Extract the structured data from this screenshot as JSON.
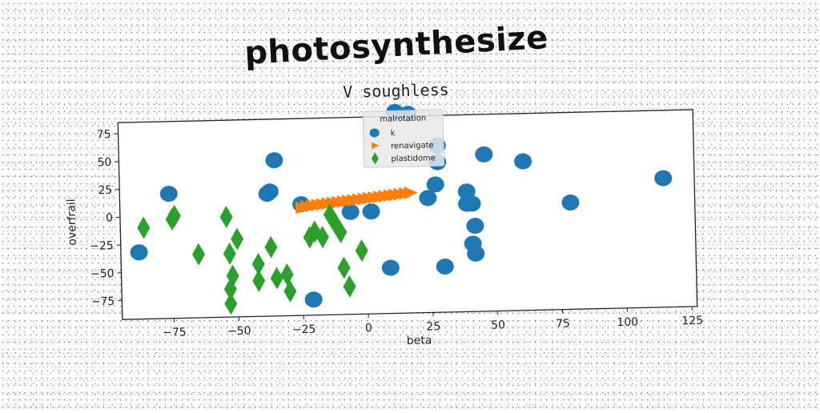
{
  "page_title": "photosynthesize",
  "chart_data": {
    "type": "scatter",
    "subtitle": "V soughless",
    "xlabel": "beta",
    "ylabel": "overfrail",
    "xlim": [
      -95,
      127
    ],
    "ylim": [
      -92,
      85
    ],
    "xticks": [
      -75,
      -50,
      -25,
      0,
      25,
      50,
      75,
      100,
      125
    ],
    "yticks": [
      -75,
      -50,
      -25,
      0,
      25,
      50,
      75
    ],
    "xtick_labels": [
      "−75",
      "−50",
      "−25",
      "0",
      "25",
      "50",
      "75",
      "100",
      "125"
    ],
    "ytick_labels": [
      "−75",
      "−50",
      "−25",
      "0",
      "25",
      "50",
      "75"
    ],
    "grid": false,
    "legend": {
      "title": "malrotation",
      "placement": "top-center",
      "entries": [
        "k",
        "renavigate",
        "plastidome"
      ]
    },
    "series": [
      {
        "name": "k",
        "marker": "circle",
        "color": "#1f77b4",
        "points": [
          [
            -88,
            -32
          ],
          [
            -76,
            20
          ],
          [
            -38,
            18
          ],
          [
            -37,
            20
          ],
          [
            -35,
            48
          ],
          [
            -25,
            8
          ],
          [
            -21,
            -78
          ],
          [
            -6,
            0
          ],
          [
            2,
            0
          ],
          [
            9,
            -51
          ],
          [
            12,
            89
          ],
          [
            17,
            87
          ],
          [
            24,
            11
          ],
          [
            27,
            23
          ],
          [
            28,
            43
          ],
          [
            28,
            58
          ],
          [
            30,
            -51
          ],
          [
            39,
            16
          ],
          [
            39,
            5
          ],
          [
            41,
            5
          ],
          [
            42,
            -15
          ],
          [
            41,
            -31
          ],
          [
            42,
            -40
          ],
          [
            46,
            49
          ],
          [
            61,
            42
          ],
          [
            79,
            4
          ],
          [
            115,
            24
          ]
        ]
      },
      {
        "name": "renavigate",
        "marker": "triangle",
        "color": "#ff7f0e",
        "points": [
          [
            -25,
            5
          ],
          [
            -23,
            6
          ],
          [
            -21,
            6.5
          ],
          [
            -19,
            7
          ],
          [
            -17,
            7.5
          ],
          [
            -15,
            8
          ],
          [
            -13,
            8.5
          ],
          [
            -11,
            9
          ],
          [
            -9,
            9.5
          ],
          [
            -7,
            10
          ],
          [
            -5,
            10.5
          ],
          [
            -3,
            11
          ],
          [
            -1,
            11.5
          ],
          [
            1,
            12
          ],
          [
            3,
            12.5
          ],
          [
            5,
            13
          ],
          [
            7,
            13.5
          ],
          [
            9,
            14
          ],
          [
            11,
            14.5
          ],
          [
            13,
            15
          ],
          [
            15,
            15.5
          ],
          [
            17,
            16
          ]
        ]
      },
      {
        "name": "plastidome",
        "marker": "diamond",
        "color": "#2ca02c",
        "points": [
          [
            -86,
            -10
          ],
          [
            -75,
            -3
          ],
          [
            -74,
            0
          ],
          [
            -65,
            -35
          ],
          [
            -54,
            -2
          ],
          [
            -53,
            -35
          ],
          [
            -52,
            -55
          ],
          [
            -53,
            -67
          ],
          [
            -53,
            -80
          ],
          [
            -50,
            -22
          ],
          [
            -42,
            -45
          ],
          [
            -42,
            -60
          ],
          [
            -37,
            -30
          ],
          [
            -35,
            -58
          ],
          [
            -31,
            -55
          ],
          [
            -30,
            -70
          ],
          [
            -22,
            -22
          ],
          [
            -20,
            -17
          ],
          [
            -17,
            -22
          ],
          [
            -14,
            -2
          ],
          [
            -12,
            -10
          ],
          [
            -10,
            -18
          ],
          [
            -9,
            -50
          ],
          [
            -7,
            -67
          ],
          [
            -2,
            -35
          ]
        ]
      }
    ]
  }
}
